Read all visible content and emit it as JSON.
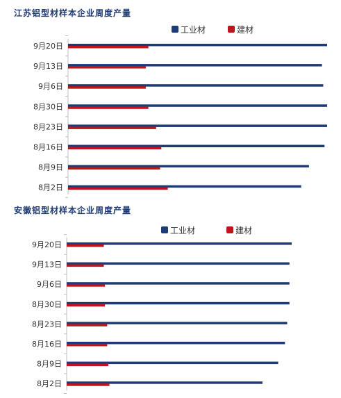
{
  "chart_data": [
    {
      "type": "bar",
      "orientation": "horizontal",
      "title": "江苏铝型材样本企业周度产量",
      "categories": [
        "9月20日",
        "9月13日",
        "9月6日",
        "8月30日",
        "8月23日",
        "8月16日",
        "8月9日",
        "8月2日"
      ],
      "series": [
        {
          "name": "工业材",
          "color": "#1f3b75",
          "values": [
            100,
            98,
            98.5,
            100,
            100,
            99,
            93,
            90
          ]
        },
        {
          "name": "建材",
          "color": "#c0141c",
          "values": [
            31,
            30,
            30,
            31,
            34,
            36,
            35.5,
            38.5
          ]
        }
      ],
      "xlim": [
        0,
        100
      ],
      "legend_position": "top-right",
      "grid": false
    },
    {
      "type": "bar",
      "orientation": "horizontal",
      "title": "安徽铝型材样本企业周度产量",
      "categories": [
        "9月20日",
        "9月13日",
        "9月6日",
        "8月30日",
        "8月23日",
        "8月16日",
        "8月9日",
        "8月2日"
      ],
      "series": [
        {
          "name": "工业材",
          "color": "#1f3b75",
          "values": [
            100,
            99,
            99,
            99,
            98,
            97,
            94,
            87
          ]
        },
        {
          "name": "建材",
          "color": "#c0141c",
          "values": [
            16.5,
            16.5,
            17,
            17,
            18,
            18,
            18.5,
            19
          ]
        }
      ],
      "xlim": [
        0,
        100
      ],
      "legend_position": "top-right",
      "grid": false
    }
  ]
}
